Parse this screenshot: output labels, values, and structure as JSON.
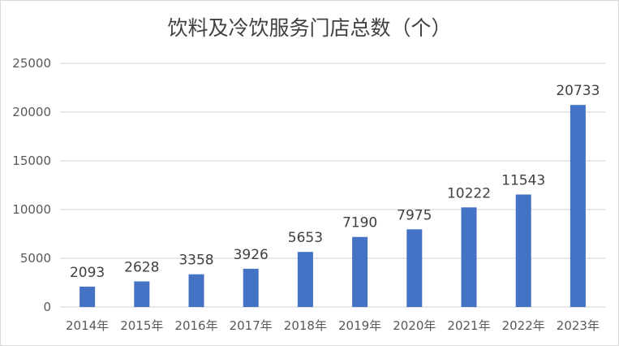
{
  "chart_data": {
    "type": "bar",
    "title": "饮料及冷饮服务门店总数（个）",
    "categories": [
      "2014年",
      "2015年",
      "2016年",
      "2017年",
      "2018年",
      "2019年",
      "2020年",
      "2021年",
      "2022年",
      "2023年"
    ],
    "values": [
      2093,
      2628,
      3358,
      3926,
      5653,
      7190,
      7975,
      10222,
      11543,
      20733
    ],
    "ylim": [
      0,
      25000
    ],
    "yticks": [
      0,
      5000,
      10000,
      15000,
      20000,
      25000
    ],
    "grid": true,
    "bar_color": "#4472c4",
    "xlabel": "",
    "ylabel": ""
  }
}
